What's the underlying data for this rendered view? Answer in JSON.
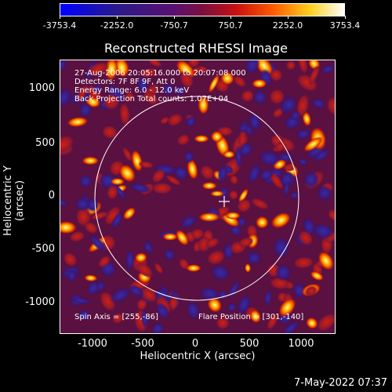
{
  "colorbar": {
    "labels": [
      "-3753.4",
      "-2252.0",
      "-750.7",
      "750.7",
      "2252.0",
      "3753.4"
    ]
  },
  "title": "Reconstructed RHESSI Image",
  "info": {
    "line1": "27-Aug-2006 20:05:16.000 to 20:07:08.000",
    "line2": "Detectors: 7F 8F 9F, Att 0",
    "line3": "Energy Range: 6.0 - 12.0 keV",
    "line4": "Back Projection    Total counts: 1.07E+04",
    "spin_axis": "Spin Axis = [255,-86]",
    "flare_position": "Flare Position = [301,-140]"
  },
  "axes": {
    "xlabel": "Heliocentric X (arcsec)",
    "ylabel": "Heliocentric Y (arcsec)",
    "x_ticks": [
      "-1000",
      "-500",
      "0",
      "500",
      "1000"
    ],
    "y_ticks": [
      "1000",
      "500",
      "0",
      "-500",
      "-1000"
    ]
  },
  "footer_date": "7-May-2022 07:37"
}
